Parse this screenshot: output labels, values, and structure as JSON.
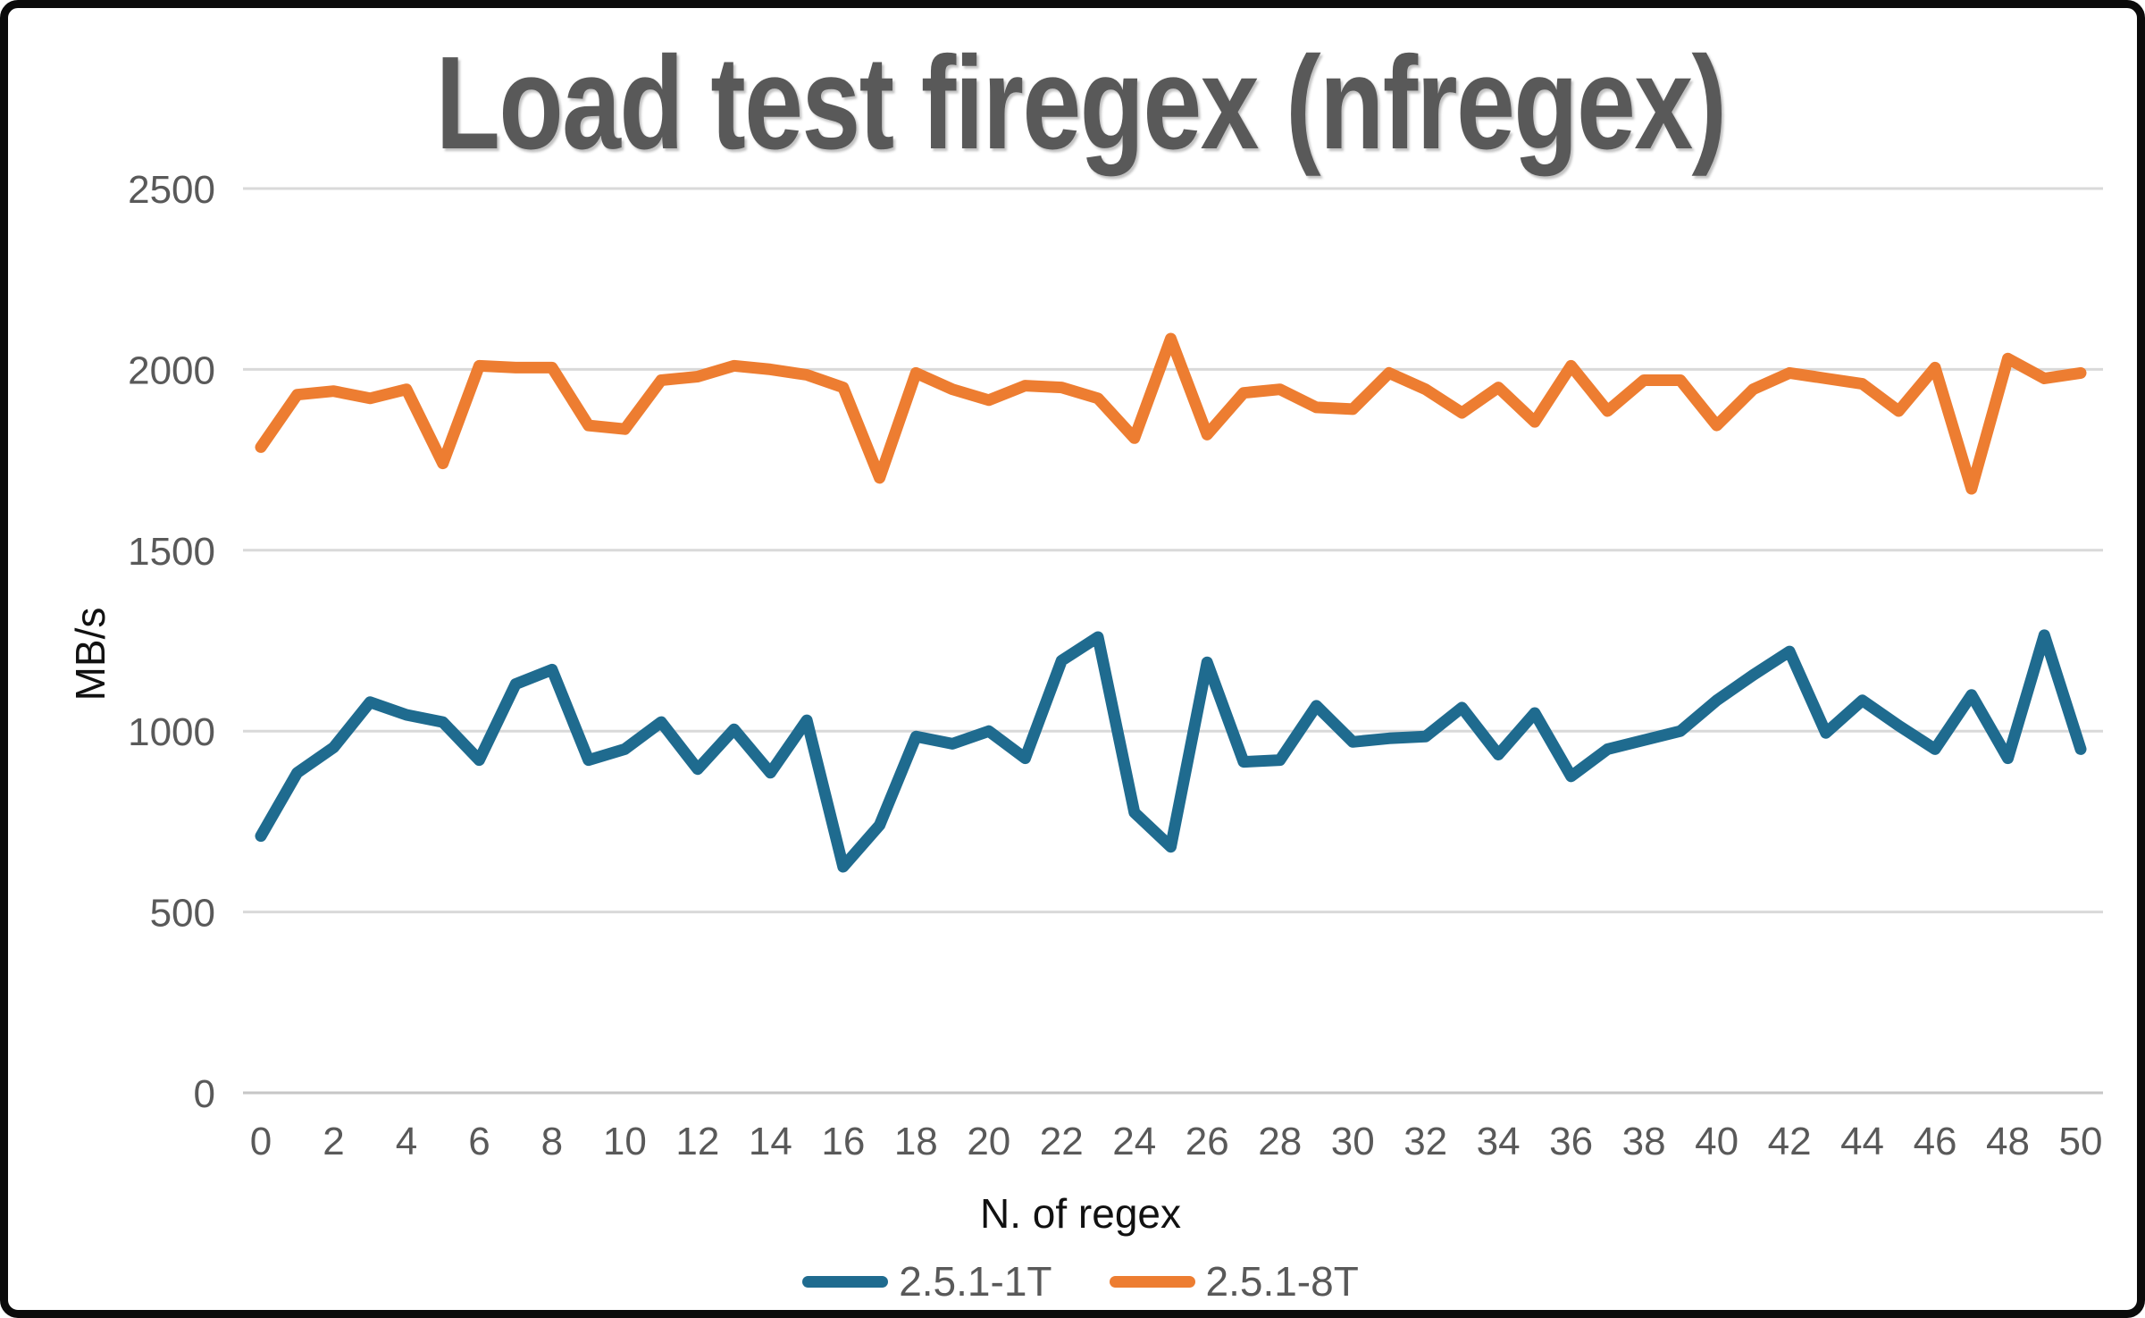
{
  "chart_title": "Load test firegex (nfregex)",
  "chart_data": {
    "type": "line",
    "title": "Load test firegex (nfregex)",
    "xlabel": "N. of regex",
    "ylabel": "MB/s",
    "x_start": 0,
    "x_step": 1,
    "x_end": 50,
    "x_ticks": [
      0,
      2,
      4,
      6,
      8,
      10,
      12,
      14,
      16,
      18,
      20,
      22,
      24,
      26,
      28,
      30,
      32,
      34,
      36,
      38,
      40,
      42,
      44,
      46,
      48,
      50
    ],
    "y_ticks": [
      0,
      500,
      1000,
      1500,
      2000,
      2500
    ],
    "ylim": [
      0,
      2500
    ],
    "grid": true,
    "legend_position": "bottom",
    "series": [
      {
        "name": "2.5.1-1T",
        "color": "#1F6B8F",
        "values": [
          710,
          885,
          955,
          1080,
          1045,
          1025,
          920,
          1130,
          1170,
          920,
          950,
          1025,
          895,
          1005,
          885,
          1030,
          625,
          740,
          985,
          965,
          1000,
          925,
          1195,
          1260,
          775,
          680,
          1190,
          915,
          920,
          1070,
          970,
          980,
          985,
          1065,
          935,
          1050,
          875,
          950,
          975,
          1000,
          1085,
          1155,
          1220,
          995,
          1085,
          1015,
          950,
          1100,
          925,
          1265,
          950
        ]
      },
      {
        "name": "2.5.1-8T",
        "color": "#ED7D31",
        "values": [
          1785,
          1930,
          1940,
          1920,
          1945,
          1740,
          2010,
          2005,
          2005,
          1845,
          1835,
          1970,
          1980,
          2010,
          2000,
          1985,
          1950,
          1700,
          1990,
          1945,
          1915,
          1955,
          1950,
          1920,
          1810,
          2085,
          1820,
          1935,
          1945,
          1895,
          1890,
          1990,
          1945,
          1880,
          1950,
          1855,
          2010,
          1885,
          1970,
          1970,
          1845,
          1945,
          1990,
          1975,
          1960,
          1885,
          2005,
          1670,
          2030,
          1975,
          1990
        ]
      }
    ]
  },
  "colors": {
    "title_text": "#595959",
    "tick_text": "#595959",
    "axis_title_text": "#111111",
    "gridline": "#D9D9D9",
    "zero_line": "#C6C6C6",
    "background": "#FFFFFF",
    "frame_border": "#0B0B0B"
  }
}
